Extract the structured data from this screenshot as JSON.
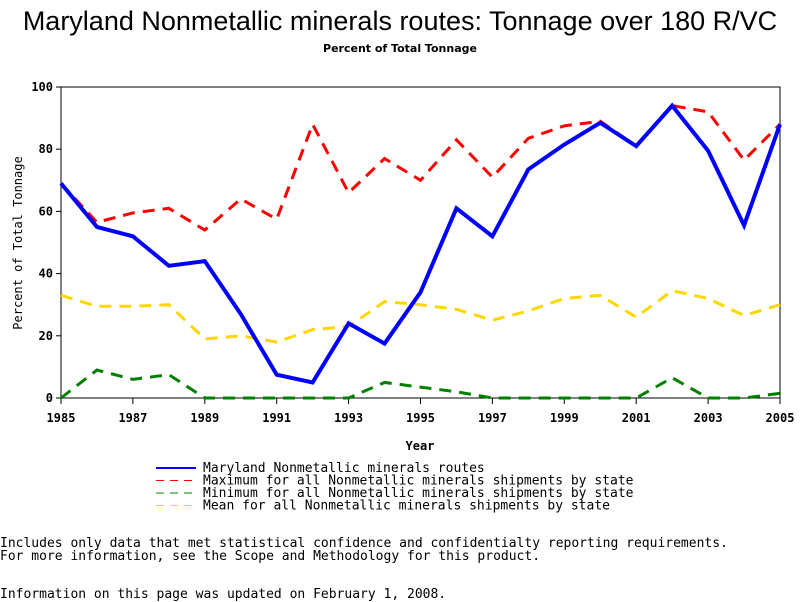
{
  "chart_data": {
    "type": "line",
    "title": "Maryland Nonmetallic minerals routes: Tonnage over 180 R/VC",
    "subtitle": "Percent of Total Tonnage",
    "xlabel": "Year",
    "ylabel": "Percent of Total Tonnage",
    "ylim": [
      0,
      100
    ],
    "xlim": [
      1985,
      2005
    ],
    "yticks": [
      "0",
      "20",
      "40",
      "60",
      "80",
      "100"
    ],
    "xticks": [
      "1985",
      "1987",
      "1989",
      "1991",
      "1993",
      "1995",
      "1997",
      "1999",
      "2001",
      "2003",
      "2005"
    ],
    "x": [
      1985,
      1986,
      1987,
      1988,
      1989,
      1990,
      1991,
      1992,
      1993,
      1994,
      1995,
      1996,
      1997,
      1998,
      1999,
      2000,
      2001,
      2002,
      2003,
      2004,
      2005
    ],
    "series": [
      {
        "name": "Maryland Nonmetallic minerals routes",
        "color": "#0000ff",
        "dash": "solid",
        "values": [
          69,
          55,
          52,
          42.5,
          44,
          27,
          7.5,
          5,
          24,
          17.5,
          34,
          61,
          52,
          73.5,
          81.5,
          88.5,
          81,
          94,
          79.5,
          55.5,
          88
        ]
      },
      {
        "name": "Maximum for all Nonmetallic minerals shipments by state",
        "color": "#ff0000",
        "dash": "dashed",
        "values": [
          69,
          56.5,
          59.5,
          61,
          54,
          64,
          57.5,
          88,
          66,
          77,
          70,
          83,
          71,
          83.5,
          87.5,
          89,
          81,
          94,
          92,
          76.5,
          88
        ]
      },
      {
        "name": "Minimum for all Nonmetallic minerals shipments by state",
        "color": "#008000",
        "dash": "dashed",
        "values": [
          0,
          9,
          6,
          7.5,
          0,
          0,
          0,
          0,
          0,
          5,
          3.5,
          2,
          0,
          0,
          0,
          0,
          0,
          6.5,
          0,
          0,
          1.5
        ]
      },
      {
        "name": "Mean for all Nonmetallic minerals shipments by state",
        "color": "#ffd700",
        "dash": "dashed",
        "values": [
          33,
          29.5,
          29.5,
          30,
          19,
          20,
          18,
          22,
          23,
          31,
          30,
          28.5,
          25,
          28,
          32,
          33,
          26,
          34.5,
          32,
          26.5,
          30
        ]
      }
    ],
    "legend_position": "bottom"
  },
  "notes": {
    "line1": "Includes only data that met statistical confidence and confidentialty reporting requirements.",
    "line2": "For more information, see the Scope and Methodology for this product.",
    "updated": "Information on this page was updated on February 1, 2008."
  }
}
